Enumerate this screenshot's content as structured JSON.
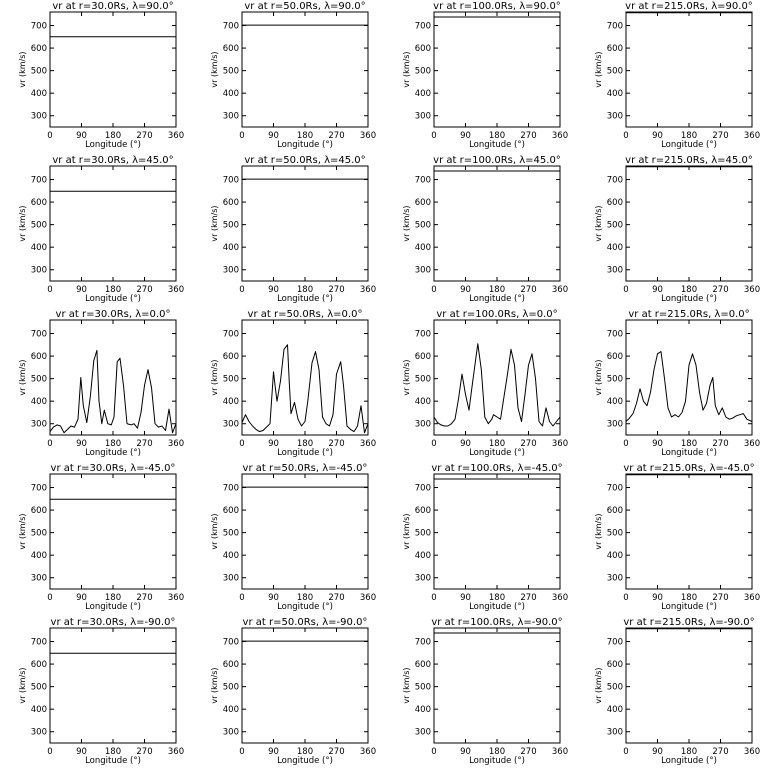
{
  "chart_data": {
    "type": "line",
    "layout": "grid of 5 rows by 4 columns of small multiples",
    "xlabel": "Longitude (°)",
    "ylabel": "vr (km/s)",
    "xlim": [
      0,
      360
    ],
    "ylim": [
      250,
      760
    ],
    "xticks": [
      "0",
      "90",
      "180",
      "270",
      "360"
    ],
    "yticks": [
      "300",
      "400",
      "500",
      "600",
      "700"
    ],
    "grid": false,
    "panels": [
      {
        "title": "vr at r=30.0Rs, λ=90.0°",
        "x": [
          0,
          360
        ],
        "y": [
          650,
          650
        ]
      },
      {
        "title": "vr at r=50.0Rs, λ=90.0°",
        "x": [
          0,
          360
        ],
        "y": [
          702,
          702
        ]
      },
      {
        "title": "vr at r=100.0Rs, λ=90.0°",
        "x": [
          0,
          360
        ],
        "y": [
          738,
          738
        ]
      },
      {
        "title": "vr at r=215.0Rs, λ=90.0°",
        "x": [
          0,
          360
        ],
        "y": [
          757,
          757
        ]
      },
      {
        "title": "vr at r=30.0Rs, λ=45.0°",
        "x": [
          0,
          360
        ],
        "y": [
          648,
          648
        ]
      },
      {
        "title": "vr at r=50.0Rs, λ=45.0°",
        "x": [
          0,
          360
        ],
        "y": [
          702,
          702
        ]
      },
      {
        "title": "vr at r=100.0Rs, λ=45.0°",
        "x": [
          0,
          360
        ],
        "y": [
          738,
          738
        ]
      },
      {
        "title": "vr at r=215.0Rs, λ=45.0°",
        "x": [
          0,
          360
        ],
        "y": [
          757,
          757
        ]
      },
      {
        "title": "vr at r=30.0Rs, λ=0.0°",
        "x": [
          0,
          10,
          20,
          30,
          40,
          50,
          60,
          70,
          80,
          88,
          95,
          105,
          115,
          125,
          134,
          140,
          148,
          155,
          165,
          175,
          183,
          192,
          200,
          210,
          220,
          232,
          240,
          250,
          260,
          270,
          280,
          290,
          300,
          310,
          320,
          330,
          340,
          350,
          360
        ],
        "y": [
          265,
          285,
          295,
          290,
          260,
          275,
          290,
          285,
          320,
          505,
          380,
          305,
          420,
          580,
          625,
          400,
          300,
          360,
          300,
          295,
          330,
          575,
          590,
          470,
          300,
          295,
          300,
          280,
          350,
          470,
          540,
          460,
          300,
          285,
          290,
          270,
          365,
          260,
          300
        ]
      },
      {
        "title": "vr at r=50.0Rs, λ=0.0°",
        "x": [
          0,
          10,
          20,
          30,
          40,
          50,
          60,
          70,
          80,
          90,
          95,
          100,
          110,
          120,
          130,
          135,
          140,
          150,
          160,
          170,
          180,
          188,
          200,
          210,
          220,
          230,
          240,
          250,
          260,
          270,
          282,
          290,
          300,
          310,
          320,
          330,
          340,
          350,
          360
        ],
        "y": [
          305,
          340,
          310,
          290,
          275,
          265,
          270,
          285,
          300,
          530,
          460,
          400,
          490,
          630,
          650,
          480,
          345,
          395,
          320,
          290,
          310,
          400,
          570,
          620,
          540,
          330,
          300,
          290,
          340,
          520,
          575,
          470,
          290,
          275,
          265,
          290,
          380,
          260,
          300
        ]
      },
      {
        "title": "vr at r=100.0Rs, λ=0.0°",
        "x": [
          0,
          10,
          20,
          30,
          40,
          50,
          60,
          70,
          80,
          90,
          100,
          110,
          125,
          135,
          145,
          155,
          165,
          170,
          180,
          190,
          200,
          210,
          220,
          230,
          240,
          250,
          260,
          270,
          280,
          290,
          300,
          310,
          320,
          330,
          340,
          350,
          360
        ],
        "y": [
          330,
          305,
          295,
          290,
          290,
          300,
          320,
          410,
          520,
          430,
          360,
          480,
          655,
          540,
          330,
          300,
          320,
          340,
          330,
          320,
          420,
          520,
          630,
          560,
          370,
          310,
          430,
          560,
          610,
          500,
          310,
          290,
          370,
          310,
          290,
          310,
          330
        ]
      },
      {
        "title": "vr at r=215.0Rs, λ=0.0°",
        "x": [
          0,
          10,
          20,
          30,
          40,
          50,
          60,
          70,
          80,
          90,
          100,
          110,
          120,
          130,
          140,
          150,
          160,
          170,
          180,
          190,
          200,
          210,
          220,
          230,
          240,
          248,
          255,
          265,
          275,
          285,
          295,
          305,
          315,
          325,
          335,
          345,
          360
        ],
        "y": [
          310,
          325,
          345,
          390,
          455,
          400,
          380,
          440,
          540,
          610,
          620,
          500,
          370,
          330,
          340,
          330,
          350,
          400,
          560,
          610,
          560,
          440,
          360,
          390,
          470,
          505,
          380,
          340,
          370,
          330,
          320,
          325,
          335,
          340,
          345,
          320,
          310
        ]
      },
      {
        "title": "vr at r=30.0Rs, λ=-45.0°",
        "x": [
          0,
          360
        ],
        "y": [
          648,
          648
        ]
      },
      {
        "title": "vr at r=50.0Rs, λ=-45.0°",
        "x": [
          0,
          360
        ],
        "y": [
          702,
          702
        ]
      },
      {
        "title": "vr at r=100.0Rs, λ=-45.0°",
        "x": [
          0,
          360
        ],
        "y": [
          738,
          738
        ]
      },
      {
        "title": "vr at r=215.0Rs, λ=-45.0°",
        "x": [
          0,
          360
        ],
        "y": [
          757,
          757
        ]
      },
      {
        "title": "vr at r=30.0Rs, λ=-90.0°",
        "x": [
          0,
          360
        ],
        "y": [
          648,
          648
        ]
      },
      {
        "title": "vr at r=50.0Rs, λ=-90.0°",
        "x": [
          0,
          360
        ],
        "y": [
          702,
          702
        ]
      },
      {
        "title": "vr at r=100.0Rs, λ=-90.0°",
        "x": [
          0,
          360
        ],
        "y": [
          738,
          738
        ]
      },
      {
        "title": "vr at r=215.0Rs, λ=-90.0°",
        "x": [
          0,
          360
        ],
        "y": [
          757,
          757
        ]
      }
    ]
  }
}
